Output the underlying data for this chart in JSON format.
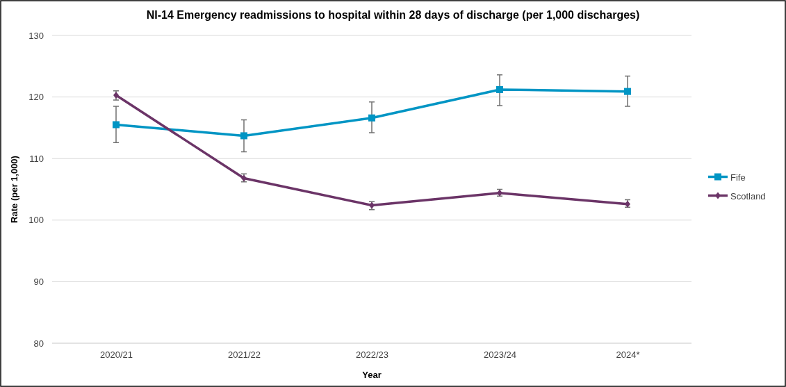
{
  "chart_data": {
    "type": "line",
    "title": "NI-14 Emergency readmissions to hospital within 28 days of discharge (per 1,000 discharges)",
    "xlabel": "Year",
    "ylabel": "Rate (per 1,000)",
    "categories": [
      "2020/21",
      "2021/22",
      "2022/23",
      "2023/24",
      "2024*"
    ],
    "series": [
      {
        "name": "Fife",
        "color": "#0095c4",
        "marker": "square",
        "values": [
          115.5,
          113.7,
          116.6,
          121.2,
          120.9
        ],
        "errors": [
          [
            112.6,
            118.5
          ],
          [
            111.1,
            116.3
          ],
          [
            114.2,
            119.2
          ],
          [
            118.6,
            123.6
          ],
          [
            118.5,
            123.4
          ]
        ]
      },
      {
        "name": "Scotland",
        "color": "#6b3467",
        "marker": "diamond",
        "values": [
          120.3,
          106.8,
          102.4,
          104.4,
          102.6
        ],
        "errors": [
          [
            119.5,
            121.0
          ],
          [
            106.2,
            107.5
          ],
          [
            101.7,
            103.0
          ],
          [
            103.9,
            105.0
          ],
          [
            102.1,
            103.3
          ]
        ]
      }
    ],
    "ylim": [
      80,
      130
    ],
    "yticks": [
      80,
      90,
      100,
      110,
      120,
      130
    ],
    "grid": "y",
    "legend": "right",
    "line_style": "solid"
  }
}
